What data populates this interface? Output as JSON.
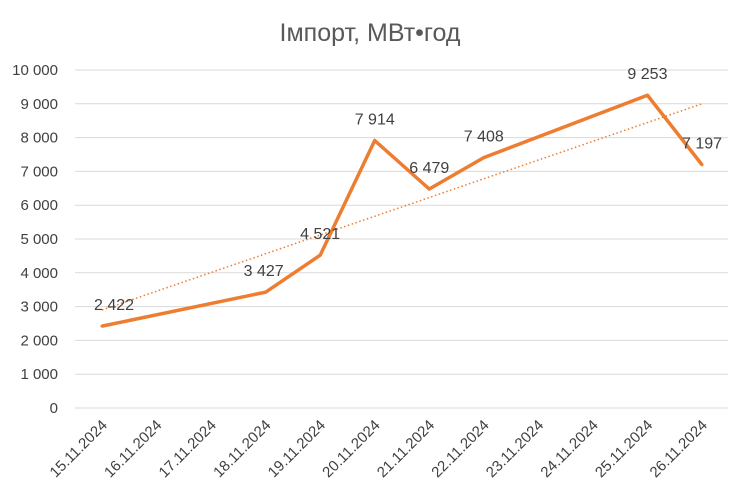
{
  "chart_data": {
    "type": "line",
    "title": "Імпорт, МВт•год",
    "xlabel": "",
    "ylabel": "",
    "categories": [
      "15.11.2024",
      "16.11.2024",
      "17.11.2024",
      "18.11.2024",
      "19.11.2024",
      "20.11.2024",
      "21.11.2024",
      "22.11.2024",
      "23.11.2024",
      "24.11.2024",
      "25.11.2024",
      "26.11.2024"
    ],
    "ylim": [
      0,
      10000
    ],
    "yticks": [
      0,
      1000,
      2000,
      3000,
      4000,
      5000,
      6000,
      7000,
      8000,
      9000,
      10000
    ],
    "ytick_labels": [
      "0",
      "1 000",
      "2 000",
      "3 000",
      "4 000",
      "5 000",
      "6 000",
      "7 000",
      "8 000",
      "9 000",
      "10 000"
    ],
    "grid": true,
    "legend": "none",
    "series": [
      {
        "points": [
          {
            "x": "15.11.2024",
            "y": 2422,
            "label": "2 422"
          },
          {
            "x": "18.11.2024",
            "y": 3427,
            "label": "3 427"
          },
          {
            "x": "19.11.2024",
            "y": 4521,
            "label": "4 521"
          },
          {
            "x": "20.11.2024",
            "y": 7914,
            "label": "7 914"
          },
          {
            "x": "21.11.2024",
            "y": 6479,
            "label": "6 479"
          },
          {
            "x": "22.11.2024",
            "y": 7408,
            "label": "7 408"
          },
          {
            "x": "25.11.2024",
            "y": 9253,
            "label": "9 253"
          },
          {
            "x": "26.11.2024",
            "y": 7197,
            "label": "7 197"
          }
        ],
        "color": "#ED7D31"
      }
    ],
    "trendline": {
      "type": "linear",
      "style": "dotted",
      "color": "#ED7D31",
      "start": {
        "x": "15.11.2024",
        "y": 2900
      },
      "end": {
        "x": "26.11.2024",
        "y": 9000
      }
    }
  }
}
